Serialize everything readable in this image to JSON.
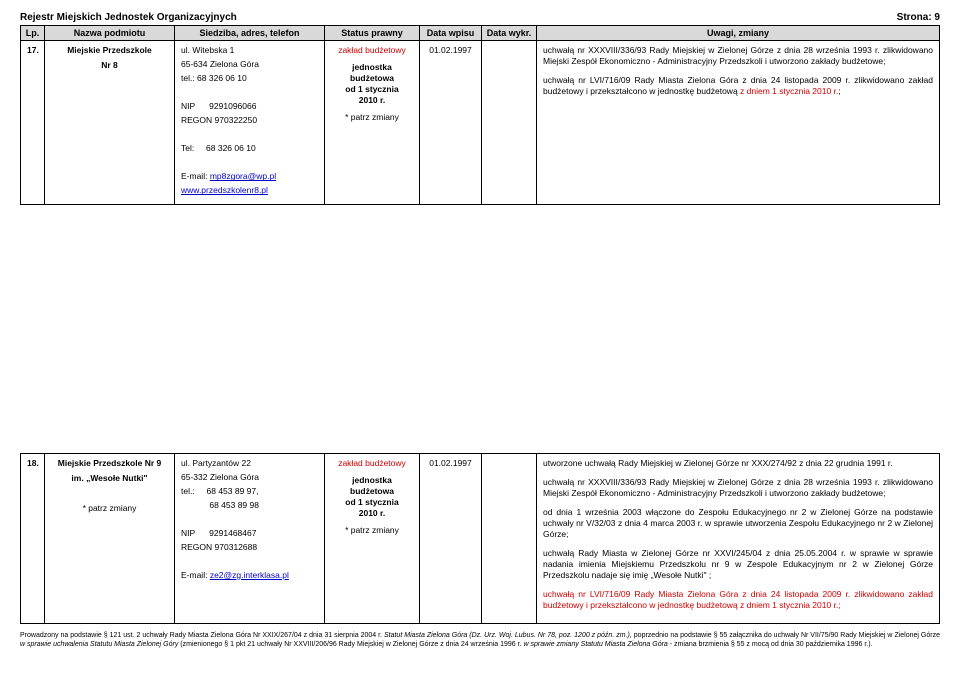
{
  "header": {
    "title": "Rejestr Miejskich Jednostek Organizacyjnych",
    "page": "Strona: 9"
  },
  "columns": {
    "lp": "Lp.",
    "name": "Nazwa podmiotu",
    "addr": "Siedziba, adres, telefon",
    "status": "Status prawny",
    "wpis": "Data wpisu",
    "wykr": "Data wykr.",
    "uwagi": "Uwagi, zmiany"
  },
  "rows": [
    {
      "lp": "17.",
      "name": {
        "line1": "Miejskie Przedszkole",
        "line2": "Nr 8"
      },
      "addr": {
        "street": "ul. Witebska 1",
        "city": "65-634 Zielona Góra",
        "tel1": "tel.: 68 326 06 10",
        "nip": "NIP      9291096066",
        "regon": "REGON 970322250",
        "tel2": "Tel:     68 326 06 10",
        "email_label": "E-mail: ",
        "email": "mp8zgora@wp.pl",
        "www": "www.przedszkolenr8.pl"
      },
      "status": {
        "red": "zakład budżetowy",
        "unit1": "jednostka",
        "unit2": "budżetowa",
        "unit3": "od 1 stycznia",
        "unit4": "2010 r.",
        "pz": "* patrz zmiany"
      },
      "wpis": "01.02.1997",
      "uwagi": {
        "p1": "uchwałą nr XXXVIII/336/93 Rady Miejskiej w Zielonej Górze z dnia 28 września 1993 r. zlikwidowano Miejski Zespół Ekonomiczno - Administracyjny Przedszkoli i utworzono zakłady budżetowe;",
        "p2_black": "uchwałą nr LVI/716/09 Rady Miasta Zielona Góra z dnia 24 listopada 2009 r.  zlikwidowano  zakład  budżetowy i przekształcono w jednostkę budżetową ",
        "p2_red": "z dniem 1 stycznia 2010 r.",
        "p2_end": ";"
      }
    },
    {
      "lp": "18.",
      "name": {
        "line1": "Miejskie Przedszkole Nr 9",
        "line2": "im. „Wesołe Nutki\"",
        "pz": "* patrz zmiany"
      },
      "addr": {
        "street": "ul. Partyzantów 22",
        "city": "65-332 Zielona Góra",
        "tel1": "tel.:     68 453 89 97,",
        "tel1b": "            68 453 89 98",
        "nip": "NIP      9291468467",
        "regon": "REGON 970312688",
        "email_label": "E-mail: ",
        "email": "ze2@zg.interklasa.pl"
      },
      "status": {
        "red": "zakład budżetowy",
        "unit1": "jednostka",
        "unit2": "budżetowa",
        "unit3": "od 1 stycznia",
        "unit4": "2010 r.",
        "pz": "* patrz zmiany"
      },
      "wpis": "01.02.1997",
      "uwagi": {
        "p1": "utworzone  uchwałą  Rady  Miejskiej   w  Zielonej  Górze  nr XXX/274/92 z dnia 22 grudnia 1991 r.",
        "p2": "uchwałą nr XXXVIII/336/93 Rady Miejskiej w Zielonej Górze z dnia 28 września 1993 r. zlikwidowano Miejski Zespół Ekonomiczno - Administracyjny Przedszkoli i utworzono zakłady budżetowe;",
        "p3": "od dnia 1 września 2003 włączone do Zespołu Edukacyjnego nr 2 w Zielonej Górze na podstawie uchwały nr V/32/03 z dnia 4 marca 2003 r. w sprawie utworzenia Zespołu Edukacyjnego nr 2 w Zielonej Górze;",
        "p4": "uchwałą Rady Miasta w Zielonej Górze nr XXVI/245/04 z dnia 25.05.2004 r. w sprawie w sprawie nadania imienia Miejskiemu Przedszkolu nr 9 w Zespole Edukacyjnym nr 2 w Zielonej Górze Przedszkolu nadaje się imię „Wesołe Nutki\" ;",
        "p5_red": "uchwałą nr LVI/716/09 Rady Miasta Zielona Góra z dnia 24 listopada 2009 r.  zlikwidowano  zakład  budżetowy i przekształcono w jednostkę budżetową z dniem 1 stycznia 2010 r.;"
      }
    }
  ],
  "footer": {
    "t1": "Prowadzony na podstawie § 121 ust. 2 uchwały Rady Miasta Zielona Góra Nr XXIX/267/04 z dnia 31 sierpnia 2004 r. ",
    "t1i": "Statut Miasta Zielona Góra (Dz. Urz. Woj. Lubus. Nr 78, poz. 1200 z późn. zm.),",
    "t2": " poprzednio na podstawie § 55 załącznika do uchwały Nr VII/75/90 Rady Miejskiej w Zielonej Górze ",
    "t2i": "w sprawie uchwalenia Statutu Miasta Zielonej Góry",
    "t3": " (zmienionego § 1 pkt 21 uchwały Nr XXVIII/206/96 Rady Miejskiej w Zielonej Górze z dnia 24 września 1996 r. ",
    "t3i": "w sprawie zmiany Statutu Miasta Zielona Góra",
    "t4": " - zmiana brzmienia § 55 z mocą od dnia 30 października 1996 r.)."
  }
}
